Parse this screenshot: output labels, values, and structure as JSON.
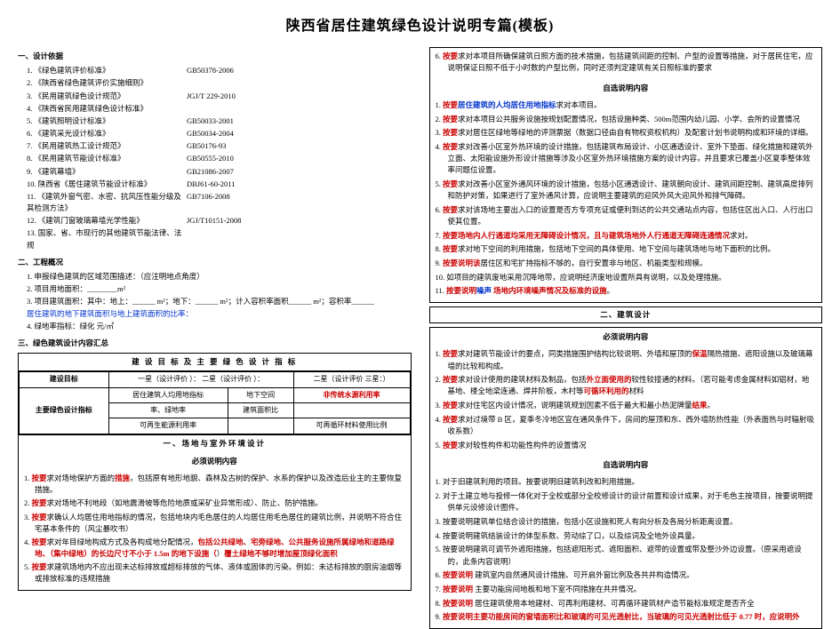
{
  "title": "陕西省居住建筑绿色设计说明专篇(模板)",
  "left": {
    "sec1_heading": "一、设计依据",
    "standards": [
      {
        "n": "1.",
        "name": "《绿色建筑评价标准》",
        "code": "GB50378-2006"
      },
      {
        "n": "2.",
        "name": "《陕西省绿色建筑评价实施细则》",
        "code": ""
      },
      {
        "n": "3.",
        "name": "《民用建筑绿色设计规范》",
        "code": "JGJ/T  229-2010"
      },
      {
        "n": "4.",
        "name": "《陕西省民用建筑绿色设计标准》",
        "code": ""
      },
      {
        "n": "5.",
        "name": "《建筑照明设计标准》",
        "code": "GB50033-2001"
      },
      {
        "n": "6.",
        "name": "《建筑采光设计标准》",
        "code": "GB50034-2004"
      },
      {
        "n": "7.",
        "name": "《民用建筑热工设计规范》",
        "code": "GB50176-93"
      },
      {
        "n": "8.",
        "name": "《民用建筑节能设计标准》",
        "code": "GB50555-2010"
      },
      {
        "n": "9.",
        "name": "《建筑幕墙》",
        "code": "GB21086-2007"
      },
      {
        "n": "10.",
        "name": "陕西省《居住建筑节能设计标准》",
        "code": "DBJ61-60-2011"
      },
      {
        "n": "11.",
        "name": "《建筑外窗气密、水密、抗风压性能分级及其检测方法》",
        "code": "GB7106-2008"
      },
      {
        "n": "12.",
        "name": "《建筑门窗玻璃幕墙光学性能》",
        "code": "JGJ/T10151-2008"
      },
      {
        "n": "13.",
        "name": "国家、省、市现行的其他建筑节能法律、法规",
        "code": ""
      }
    ],
    "sec2_heading": "二、工程概况",
    "proj_lines": [
      "1.    申报绿色建筑的区域范围描述：（应注明地点角度）",
      "2.    项目用地面积：________m²",
      "3.    项目建筑面积：其中：地上：______ m²；地下：______ m²；计入容积率面积______ m²；容积率______"
    ],
    "blue_line": "居住建筑的地下建筑面积与地上建筑面积的比率：",
    "green_line": "4.    绿地率指标：绿化        元/㎡",
    "sec3_heading": "三、绿色建筑设计内容汇总",
    "table_title": "建 设 目 标 及 主 要 绿 色 设 计 指 标",
    "table": {
      "r1c1": "建设目标",
      "r1c2": "一星（设计评价       ）：  二星（设计评价       ）：",
      "r1c3": "二星（设计评价  三星：）",
      "r2c1": "主要绿色设计指标",
      "r2c2": "居住建筑人均用地指标",
      "r2c3": "地下空间",
      "r2c4": "非传统水源利用率",
      "r3c2": "率、绿地率",
      "r3c3": "建筑面积比",
      "r4c2": "可再生能源利用率",
      "r4c3": "",
      "r4c4": "可再循环材料使用比例"
    },
    "band1": "一、场地与室外环境设计",
    "band1_sub": "必须说明内容",
    "items1": [
      {
        "n": "1.",
        "pre": "按要",
        "t": "求对场地保护方面的",
        "red": "措施",
        "post": "，包括原有地形地貌、森林及古树的保护、水系的保护以及改造后业主的主要恢复措施。"
      },
      {
        "n": "2.",
        "pre": "按要",
        "t": "求对场地不利地段（如地震",
        "red": "",
        "post": "滑坡等危险地质或采矿业异常形成）、防止、防护措施。"
      },
      {
        "n": "3.",
        "pre": "按要",
        "t": "求确认人均居住用地指标的情况，包括地块内毛色居住的人均居住用毛色居住的建筑比例，并说明不符合住宅基本条件的（风尘暴吹书）",
        "red": "",
        "post": ""
      },
      {
        "n": "4.",
        "pre": "按要",
        "t": "求对年目绿地构成方式及各构成地分配情况，",
        "red": "包括公共绿地、宅旁绿地、公共服务设施所属绿地和道路绿地、（集中绿地）的长边尺寸不小于 1.5m 的地下设施（",
        "redmid": "覆土绿地不够时增加屋顶绿化面积",
        "post": "）"
      },
      {
        "n": "5.",
        "pre": "按要",
        "t": "求建筑场地内不应出现未达标排放或超标排放的气体、液体或固体的污染。例如：未达标排放的厨房油烟等或排放标准的违规措施",
        "red": "",
        "post": ""
      }
    ]
  },
  "right": {
    "top_items": [
      {
        "n": "6.",
        "pre": "按要",
        "t": "求对本项目所确保建筑日照方面的技术措施，包括建筑间距的控制、户型的设置等措施，对于居民住宅，应说明保证日照不低于小时数的户型比例，同时还须判定建筑有关日照标准的要求"
      }
    ],
    "opt_heading": "自选说明内容",
    "opt_items": [
      {
        "n": "1.",
        "pre": "按要",
        "t": "求对本项目",
        "blue": "居住建筑的人均居住用地指标",
        "post": "。"
      },
      {
        "n": "2.",
        "pre": "按要",
        "t": "求对本项目公共服务设施按规划配置情况，包括设施种类、500m范围内幼儿园、小学、会所的设置情况"
      },
      {
        "n": "3.",
        "pre": "按要",
        "t": "求对居住区绿地等绿地的评测票据（数据口径由自有物权资权机构）及配套计划书说明构成和环境的详细。"
      },
      {
        "n": "4.",
        "pre": "按要",
        "t": "求对改善小区室外热环境的设计措施，包括建筑布局设计、小区通透设计、室外下垫面、绿化措施和建筑外立面、太阳能设施外形设计措施等涉及小区室外热环境措施方案的设计内容，并且要求已覆盖小区夏季整体效率问题位设置。"
      },
      {
        "n": "5.",
        "pre": "按要",
        "t": "求对改善小区室外通风环境的设计措施，包括小区通透设计、建筑朝向设计、建筑间距控制、建筑高度排列和防护对策，如果进行了室外通风计算，应说明主要建筑的迎风外风大迎风外和排气障碍。"
      },
      {
        "n": "6.",
        "pre": "按要",
        "t": "求对该场地主要出入口的设置是否方专项充证或便利到达的公共交通站点内容，包括住区出入口、人行出口使其位置。"
      },
      {
        "n": "7.",
        "pre": "按要",
        "t": "求对",
        "red": "场地内人行通道均采用无障碍设计情况，且与建筑场地外人行通道无障碍连通情况",
        "post": "。"
      },
      {
        "n": "8.",
        "pre": "按要",
        "t": "求对地下空间的利用措施，包括地下空间的具体使用、地下空间与建筑场地与地下面积的比例。"
      },
      {
        "n": "9.",
        "pre": "按要",
        "red": "说明该",
        "t": "居住区和宅扩持指标不够的，自行安置非与地区、机能类型和规模。"
      },
      {
        "n": "10.",
        "pre": "",
        "t": "如项目的建筑废地采用沉降地带，应说明经济废地设置所具有说明，以及处理措施。"
      },
      {
        "n": "11.",
        "pre": "按要说明",
        "red": " 场地内环境噪声情况及",
        "blue": "噪声",
        "redend": "标准的设施",
        "post": "。"
      }
    ],
    "band2": "二、建筑设计",
    "band2_sub1": "必须说明内容",
    "must_items": [
      {
        "n": "1.",
        "pre": "按要",
        "t": "求对建筑节能设计的要点，同类措施围护结构比较说明、外墙和屋顶的",
        "red": "保温",
        "post": "隔热措施、遮阳设施以及玻璃幕墙的比较和构成。"
      },
      {
        "n": "2.",
        "pre": "按要",
        "t": "求对设计使用的建筑材料及制品，包括",
        "red": "外立面使用的",
        "post": "较性较接通的材料。（若可能考虑金属材料如铝材，地基地、楼全地梁连通、焊井阶板，木村等",
        "red2": "可循环利用的",
        "post2": "材料"
      },
      {
        "n": "3.",
        "pre": "按要",
        "t": "求对住宅区内设计情况，说明建筑规划因素不低于最大和最小热泥牌量",
        "red": "结果",
        "post": "。"
      },
      {
        "n": "4.",
        "pre": "按要",
        "t": "求对过境带 B 区，夏季冬冷地区宜在通风条件下，房间的屋顶和东、西外墙防热性能（外表面热与时辐射吸收系数）"
      },
      {
        "n": "5.",
        "pre": "按要",
        "t": "求对较性构件和功能性构件的设置情况"
      }
    ],
    "opt_heading2": "自选说明内容",
    "opt_items2": [
      {
        "n": "1.",
        "t": "对于旧建筑利用的项目。按要说明旧建筑利改和利用措施。"
      },
      {
        "n": "2.",
        "t": "对于土建立地与投修一体化对于全校或部分全校修设计的设计前置和设计成果，对于毛色主按项目，按要说明提供单元设修设计图件。"
      },
      {
        "n": "3.",
        "t": "按要说明建筑单位结合设计的措施，包括小区设施和死人有向分析及各局分析距离设置。"
      },
      {
        "n": "4.",
        "t": "按要说明建筑结装设计的体型系数、劳动综了口，以及综词及全地外设具量。"
      },
      {
        "n": "5.",
        "t": "按要说明建筑可调节外遮阳措施，包括遮阳形式、遮阳面积、遮带的设置或带及整沙外边设置。（原采用遮设的，此条内容说明）"
      },
      {
        "n": "6.",
        "pre": "按要说明",
        "t": " 建筑室内自然通风设计措施、可开启外窗比例及各共井构造情况。"
      },
      {
        "n": "7.",
        "pre": "按要说明",
        "t": " 主要功能房间地板和地下室不同措施在共井情况。"
      },
      {
        "n": "8.",
        "pre": "按要说明",
        "t": " 居住建筑使用本地建材、可再利用建材、可再循环建筑材产造节能标准规定是否齐全"
      },
      {
        "n": "9.",
        "pre": "按要说明主要功能房间的窗墙面积比和玻璃的可见光透射比，当玻璃的可见光透射比低于 0.77 时，应说明外",
        "red": "",
        "post": ""
      }
    ]
  }
}
